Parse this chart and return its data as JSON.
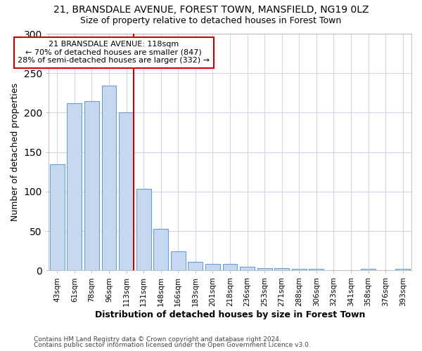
{
  "title": "21, BRANSDALE AVENUE, FOREST TOWN, MANSFIELD, NG19 0LZ",
  "subtitle": "Size of property relative to detached houses in Forest Town",
  "xlabel": "Distribution of detached houses by size in Forest Town",
  "ylabel": "Number of detached properties",
  "categories": [
    "43sqm",
    "61sqm",
    "78sqm",
    "96sqm",
    "113sqm",
    "131sqm",
    "148sqm",
    "166sqm",
    "183sqm",
    "201sqm",
    "218sqm",
    "236sqm",
    "253sqm",
    "271sqm",
    "288sqm",
    "306sqm",
    "323sqm",
    "341sqm",
    "358sqm",
    "376sqm",
    "393sqm"
  ],
  "values": [
    135,
    212,
    215,
    234,
    200,
    103,
    53,
    24,
    11,
    8,
    8,
    5,
    3,
    3,
    2,
    2,
    0,
    0,
    2,
    0,
    2
  ],
  "bar_color": "#c5d8f0",
  "bar_edge_color": "#6b9fd4",
  "vline_x_index": 4,
  "annotation_title": "21 BRANSDALE AVENUE: 118sqm",
  "annotation_line1": "← 70% of detached houses are smaller (847)",
  "annotation_line2": "28% of semi-detached houses are larger (332) →",
  "annotation_box_color": "#ffffff",
  "annotation_box_edge": "#cc0000",
  "vline_color": "#cc0000",
  "background_color": "#ffffff",
  "plot_bg_color": "#ffffff",
  "grid_color": "#d0d8e8",
  "ylim": [
    0,
    300
  ],
  "yticks": [
    0,
    50,
    100,
    150,
    200,
    250,
    300
  ],
  "footer1": "Contains HM Land Registry data © Crown copyright and database right 2024.",
  "footer2": "Contains public sector information licensed under the Open Government Licence v3.0."
}
